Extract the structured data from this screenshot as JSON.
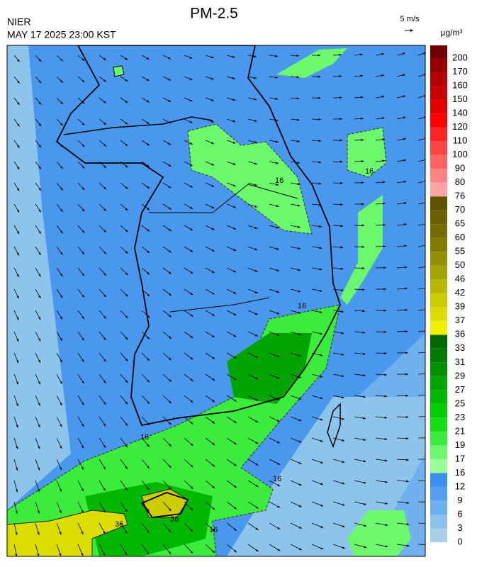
{
  "header": {
    "title": "PM-2.5",
    "agency": "NIER",
    "timestamp": "MAY 17 2025 23:00 KST"
  },
  "wind_legend": {
    "label": "5 m/s"
  },
  "colorbar": {
    "unit": "µg/m³",
    "labels": [
      0,
      3,
      6,
      9,
      12,
      16,
      17,
      19,
      21,
      23,
      25,
      27,
      29,
      31,
      33,
      36,
      37,
      39,
      42,
      46,
      50,
      55,
      60,
      65,
      70,
      76,
      80,
      90,
      100,
      110,
      120,
      140,
      150,
      160,
      170,
      200
    ],
    "colors": [
      "#a6cfe8",
      "#8cc1ec",
      "#6fb0ee",
      "#559ff0",
      "#3d8ef0",
      "#96ff96",
      "#6cf86c",
      "#3cec3c",
      "#14de14",
      "#00cc00",
      "#00b800",
      "#00a400",
      "#009000",
      "#007c00",
      "#006a00",
      "#f0f000",
      "#dcdc00",
      "#cccc00",
      "#b8b800",
      "#a4a400",
      "#909000",
      "#807c00",
      "#746c00",
      "#6a6000",
      "#605400",
      "#ffa4a4",
      "#ff8484",
      "#ff6464",
      "#ff4444",
      "#ff2424",
      "#ff0000",
      "#e40000",
      "#cc0000",
      "#b40000",
      "#980000",
      "#700000"
    ]
  },
  "map": {
    "contour_labels": [
      "16",
      "16",
      "16",
      "16",
      "16",
      "16",
      "36",
      "36"
    ]
  }
}
